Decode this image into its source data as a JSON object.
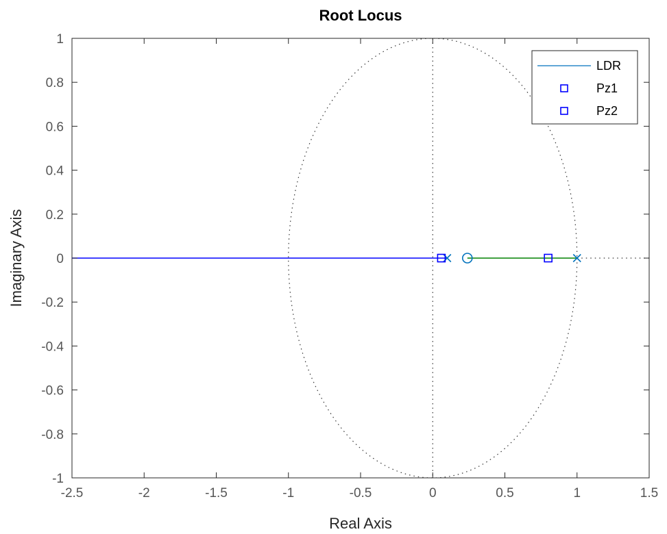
{
  "chart_data": {
    "type": "line",
    "title": "Root Locus",
    "xlabel": "Real Axis",
    "ylabel": "Imaginary Axis",
    "xlim": [
      -2.5,
      1.5
    ],
    "ylim": [
      -1,
      1
    ],
    "xticks": [
      -2.5,
      -2,
      -1.5,
      -1,
      -0.5,
      0,
      0.5,
      1,
      1.5
    ],
    "xtick_labels": [
      "-2.5",
      "-2",
      "-1.5",
      "-1",
      "-0.5",
      "0",
      "0.5",
      "1",
      "1.5"
    ],
    "yticks": [
      1,
      0.8,
      0.6,
      0.4,
      0.2,
      0,
      -0.2,
      -0.4,
      -0.6,
      -0.8,
      -1
    ],
    "ytick_labels": [
      "1",
      "0.8",
      "0.6",
      "0.4",
      "0.2",
      "0",
      "-0.2",
      "-0.4",
      "-0.6",
      "-0.8",
      "-1"
    ],
    "grid": false,
    "legend_position": "top-right",
    "unit_circle": {
      "center": [
        0,
        0
      ],
      "radius": 1,
      "style": "dotted"
    },
    "reference_lines": [
      {
        "orientation": "vertical",
        "x": 0,
        "style": "dotted"
      },
      {
        "orientation": "horizontal",
        "y": 0,
        "x_from": 1,
        "x_to": 1.5,
        "style": "dotted"
      }
    ],
    "branches": [
      {
        "color": "#0000ff",
        "points": [
          [
            -2.5,
            0
          ],
          [
            0.1,
            0
          ]
        ]
      },
      {
        "color": "#008000",
        "points": [
          [
            0.24,
            0
          ],
          [
            1.0,
            0
          ]
        ]
      }
    ],
    "poles": [
      {
        "x": 0.1,
        "y": 0,
        "color": "#0072bd"
      },
      {
        "x": 1.0,
        "y": 0,
        "color": "#0072bd"
      }
    ],
    "zeros": [
      {
        "x": 0.24,
        "y": 0,
        "color": "#0072bd"
      }
    ],
    "series": [
      {
        "name": "LDR",
        "marker": "line",
        "color": "#0072bd"
      },
      {
        "name": "Pz1",
        "marker": "square",
        "color": "#0000ff",
        "points": [
          [
            0.06,
            0
          ]
        ]
      },
      {
        "name": "Pz2",
        "marker": "square",
        "color": "#0000ff",
        "points": [
          [
            0.8,
            0
          ]
        ]
      }
    ]
  }
}
